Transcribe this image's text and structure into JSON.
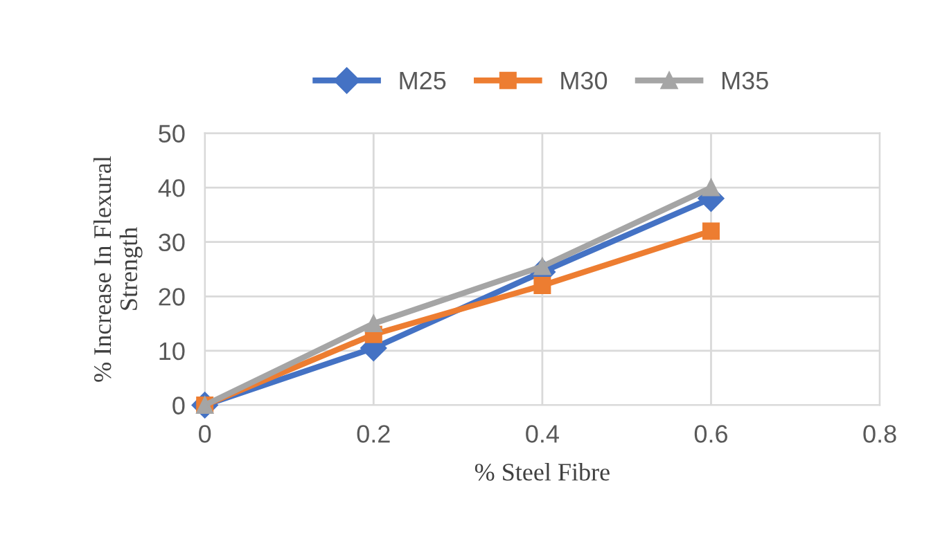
{
  "chart_data": {
    "type": "line",
    "xlabel": "% Steel Fibre",
    "ylabel": "% Increase In Flexural\nStrength",
    "x": [
      0,
      0.2,
      0.4,
      0.6
    ],
    "series": [
      {
        "name": "M25",
        "color": "#4472c4",
        "marker": "diamond",
        "values": [
          0,
          10.5,
          24.5,
          38
        ]
      },
      {
        "name": "M30",
        "color": "#ed7d31",
        "marker": "square",
        "values": [
          0,
          13,
          22,
          32
        ]
      },
      {
        "name": "M35",
        "color": "#a5a5a5",
        "marker": "triangle",
        "values": [
          0,
          15,
          25.5,
          40
        ]
      }
    ],
    "xlim": [
      0,
      0.8
    ],
    "xticks": [
      0,
      0.2,
      0.4,
      0.6,
      0.8
    ],
    "ylim": [
      0,
      50
    ],
    "yticks": [
      0,
      10,
      20,
      30,
      40,
      50
    ],
    "grid": true,
    "legend": "top",
    "line_style": "solid"
  }
}
